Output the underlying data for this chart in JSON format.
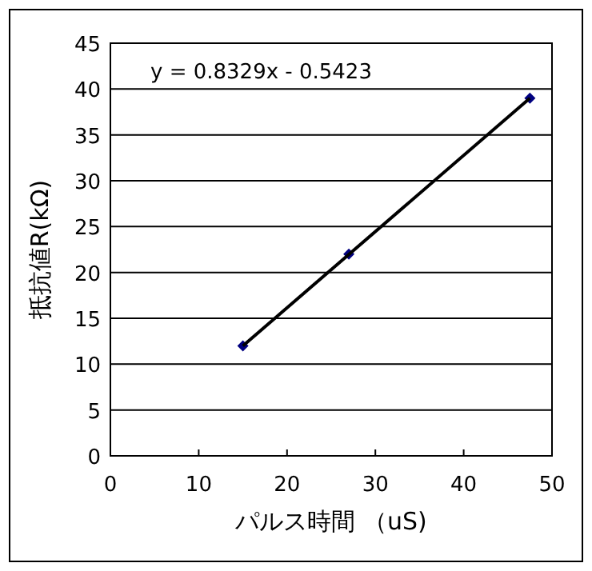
{
  "chart_data": {
    "type": "scatter",
    "xlabel": "パルス時間 （uS)",
    "ylabel": "抵抗値R(kΩ)",
    "xlim": [
      0,
      50
    ],
    "xticks": [
      0,
      10,
      20,
      30,
      40,
      50
    ],
    "ylim": [
      0,
      45
    ],
    "yticks": [
      0,
      5,
      10,
      15,
      20,
      25,
      30,
      35,
      40,
      45
    ],
    "grid": "y",
    "marker": "diamond",
    "series": [
      {
        "type": "scatter",
        "color": "#000080",
        "x": [
          15,
          27,
          47.5
        ],
        "values": [
          12,
          22,
          39
        ]
      },
      {
        "type": "line",
        "color": "#000000",
        "marker": "none",
        "x": [
          15,
          47.5
        ],
        "values": [
          12,
          39
        ]
      }
    ],
    "annotations": [
      "y = 0.8329x - 0.5423"
    ]
  }
}
